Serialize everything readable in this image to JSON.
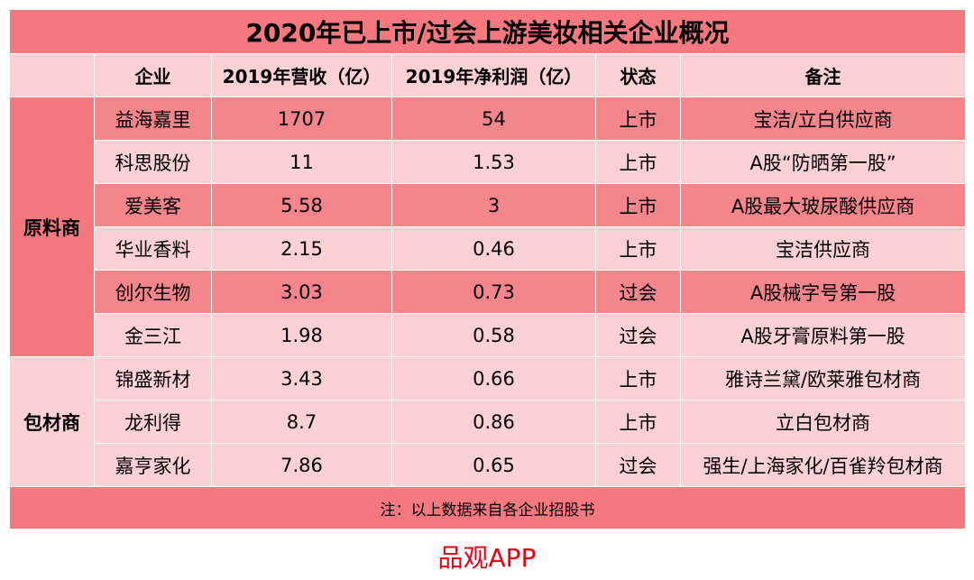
{
  "title": "2020年已上市/过会上游美妆相关企业概况",
  "headers": [
    "",
    "企业",
    "2019年营收（亿）",
    "2019年净利润（亿）",
    "状态",
    "备注"
  ],
  "groups": [
    {
      "name": "原料商",
      "rows": [
        {
          "company": "益海嘉里",
          "revenue": "1707",
          "profit": "54",
          "status": "上市",
          "note": "宝洁/立白供应商"
        },
        {
          "company": "科思股份",
          "revenue": "11",
          "profit": "1.53",
          "status": "上市",
          "note": "A股“防晒第一股”"
        },
        {
          "company": "爱美客",
          "revenue": "5.58",
          "profit": "3",
          "status": "上市",
          "note": "A股最大玻尿酸供应商"
        },
        {
          "company": "华业香料",
          "revenue": "2.15",
          "profit": "0.46",
          "status": "上市",
          "note": "宝洁供应商"
        },
        {
          "company": "创尔生物",
          "revenue": "3.03",
          "profit": "0.73",
          "status": "过会",
          "note": "A股械字号第一股"
        },
        {
          "company": "金三江",
          "revenue": "1.98",
          "profit": "0.58",
          "status": "过会",
          "note": "A股牙膏原料第一股"
        }
      ]
    },
    {
      "name": "包材商",
      "rows": [
        {
          "company": "锦盛新材",
          "revenue": "3.43",
          "profit": "0.66",
          "status": "上市",
          "note": "雅诗兰黛/欧莱雅包材商"
        },
        {
          "company": "龙利得",
          "revenue": "8.7",
          "profit": "0.86",
          "status": "上市",
          "note": "立白包材商"
        },
        {
          "company": "嘉亨家化",
          "revenue": "7.86",
          "profit": "0.65",
          "status": "过会",
          "note": "强生/上海家化/百雀羚包材商"
        }
      ]
    }
  ],
  "footnote": "注：以上数据来自各企业招股书",
  "brand": "品观APP",
  "colors": {
    "dark_red": "#f4797e",
    "mid_red": "#f4858b",
    "light_pink": "#fbd1d3",
    "brand_red": "#e60012"
  }
}
